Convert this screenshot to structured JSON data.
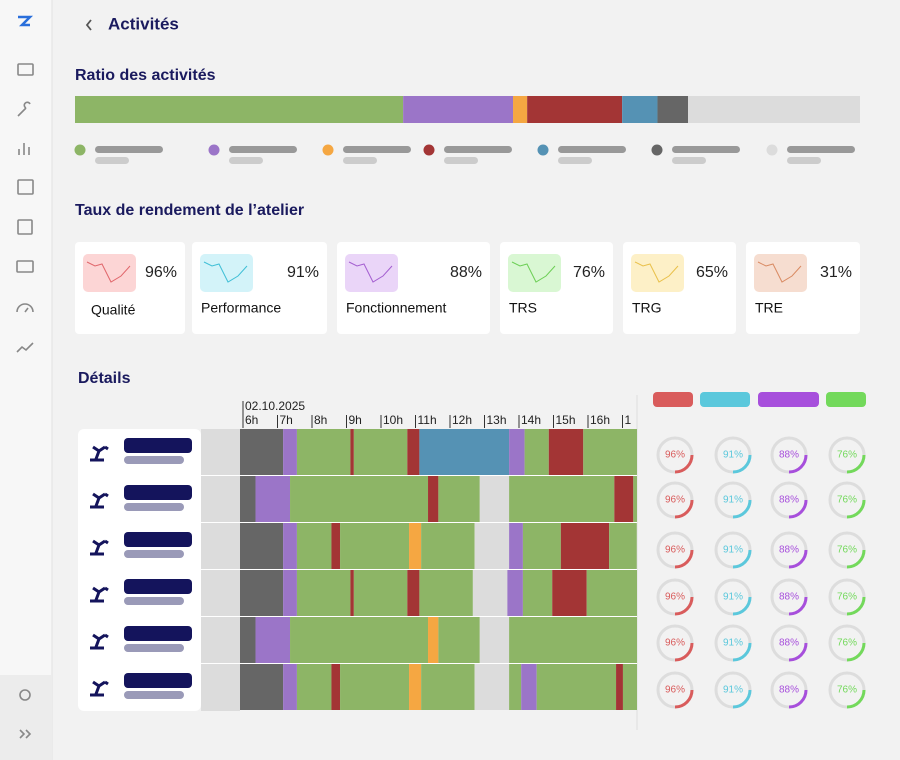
{
  "header": {
    "title": "Activités"
  },
  "ratio": {
    "title": "Ratio des activités",
    "values": [
      41.8,
      14,
      1.8,
      12.1,
      4.5,
      3.9,
      21.9
    ],
    "colors": [
      "#8db566",
      "#9b75c8",
      "#f5a742",
      "#a33535",
      "#5592b4",
      "#666666",
      "#dcdcdc"
    ]
  },
  "rendement": {
    "title": "Taux de rendement de l’atelier",
    "cards": [
      {
        "label": "Qualité",
        "value": "96%",
        "line": "#e0666b",
        "bg": "#fcd5d5"
      },
      {
        "label": "Performance",
        "value": "91%",
        "line": "#3fbfd6",
        "bg": "#d3f3f9"
      },
      {
        "label": "Fonctionnement",
        "value": "88%",
        "line": "#a45fd0",
        "bg": "#ead5f8"
      },
      {
        "label": "TRS",
        "value": "76%",
        "line": "#6ccf55",
        "bg": "#d9f7d3"
      },
      {
        "label": "TRG",
        "value": "65%",
        "line": "#e9c04a",
        "bg": "#fdf0c7"
      },
      {
        "label": "TRE",
        "value": "31%",
        "line": "#d98a62",
        "bg": "#f6ddd0"
      }
    ]
  },
  "details": {
    "title": "Détails",
    "date": "02.10.2025",
    "hours": [
      "6h",
      "7h",
      "8h",
      "9h",
      "10h",
      "11h",
      "12h",
      "13h",
      "14h",
      "15h",
      "16h",
      "1"
    ],
    "state_colors": [
      "#8db566",
      "#9b75c8",
      "#f5a742",
      "#a33535",
      "#5592b4",
      "#666666",
      "#dcdcdc"
    ],
    "gauge_colors": [
      "#d95c5c",
      "#5bc8dc",
      "#a74fdc",
      "#73d95b"
    ],
    "rows": [
      {
        "durations": [
          1.25,
          0.4,
          1.55,
          0.1,
          1.55,
          0.35,
          2.6,
          0.45,
          0.7,
          1.0,
          1.6
        ],
        "states": [
          5,
          1,
          0,
          3,
          0,
          3,
          4,
          1,
          0,
          3,
          0
        ],
        "gauges": [
          "96%",
          "91%",
          "88%",
          "76%"
        ]
      },
      {
        "durations": [
          0.45,
          1.0,
          4.0,
          0.3,
          1.2,
          0.85,
          3.05,
          0.55,
          0.15
        ],
        "states": [
          5,
          1,
          0,
          3,
          0,
          6,
          0,
          3,
          0
        ],
        "gauges": [
          "96%",
          "91%",
          "88%",
          "76%"
        ]
      },
      {
        "durations": [
          1.25,
          0.4,
          1.0,
          0.25,
          2.0,
          0.35,
          1.55,
          1.0,
          0.4,
          1.1,
          1.4,
          0.8
        ],
        "states": [
          5,
          1,
          0,
          3,
          0,
          2,
          0,
          6,
          1,
          0,
          3,
          0
        ],
        "gauges": [
          "96%",
          "91%",
          "88%",
          "76%"
        ]
      },
      {
        "durations": [
          1.25,
          0.4,
          1.55,
          0.1,
          1.55,
          0.35,
          1.55,
          1.0,
          0.45,
          0.85,
          1.0,
          1.5
        ],
        "states": [
          5,
          1,
          0,
          3,
          0,
          3,
          0,
          6,
          1,
          0,
          3,
          0
        ],
        "gauges": [
          "96%",
          "91%",
          "88%",
          "76%"
        ]
      },
      {
        "durations": [
          0.45,
          1.0,
          4.0,
          0.3,
          1.2,
          0.85,
          3.75
        ],
        "states": [
          5,
          1,
          0,
          2,
          0,
          6,
          0
        ],
        "gauges": [
          "96%",
          "91%",
          "88%",
          "76%"
        ]
      },
      {
        "durations": [
          1.25,
          0.4,
          1.0,
          0.25,
          2.0,
          0.35,
          1.55,
          1.0,
          0.35,
          0.45,
          2.3,
          0.2,
          0.45
        ],
        "states": [
          5,
          1,
          0,
          3,
          0,
          2,
          0,
          6,
          0,
          1,
          0,
          3,
          0
        ],
        "gauges": [
          "96%",
          "91%",
          "88%",
          "76%"
        ]
      }
    ]
  }
}
